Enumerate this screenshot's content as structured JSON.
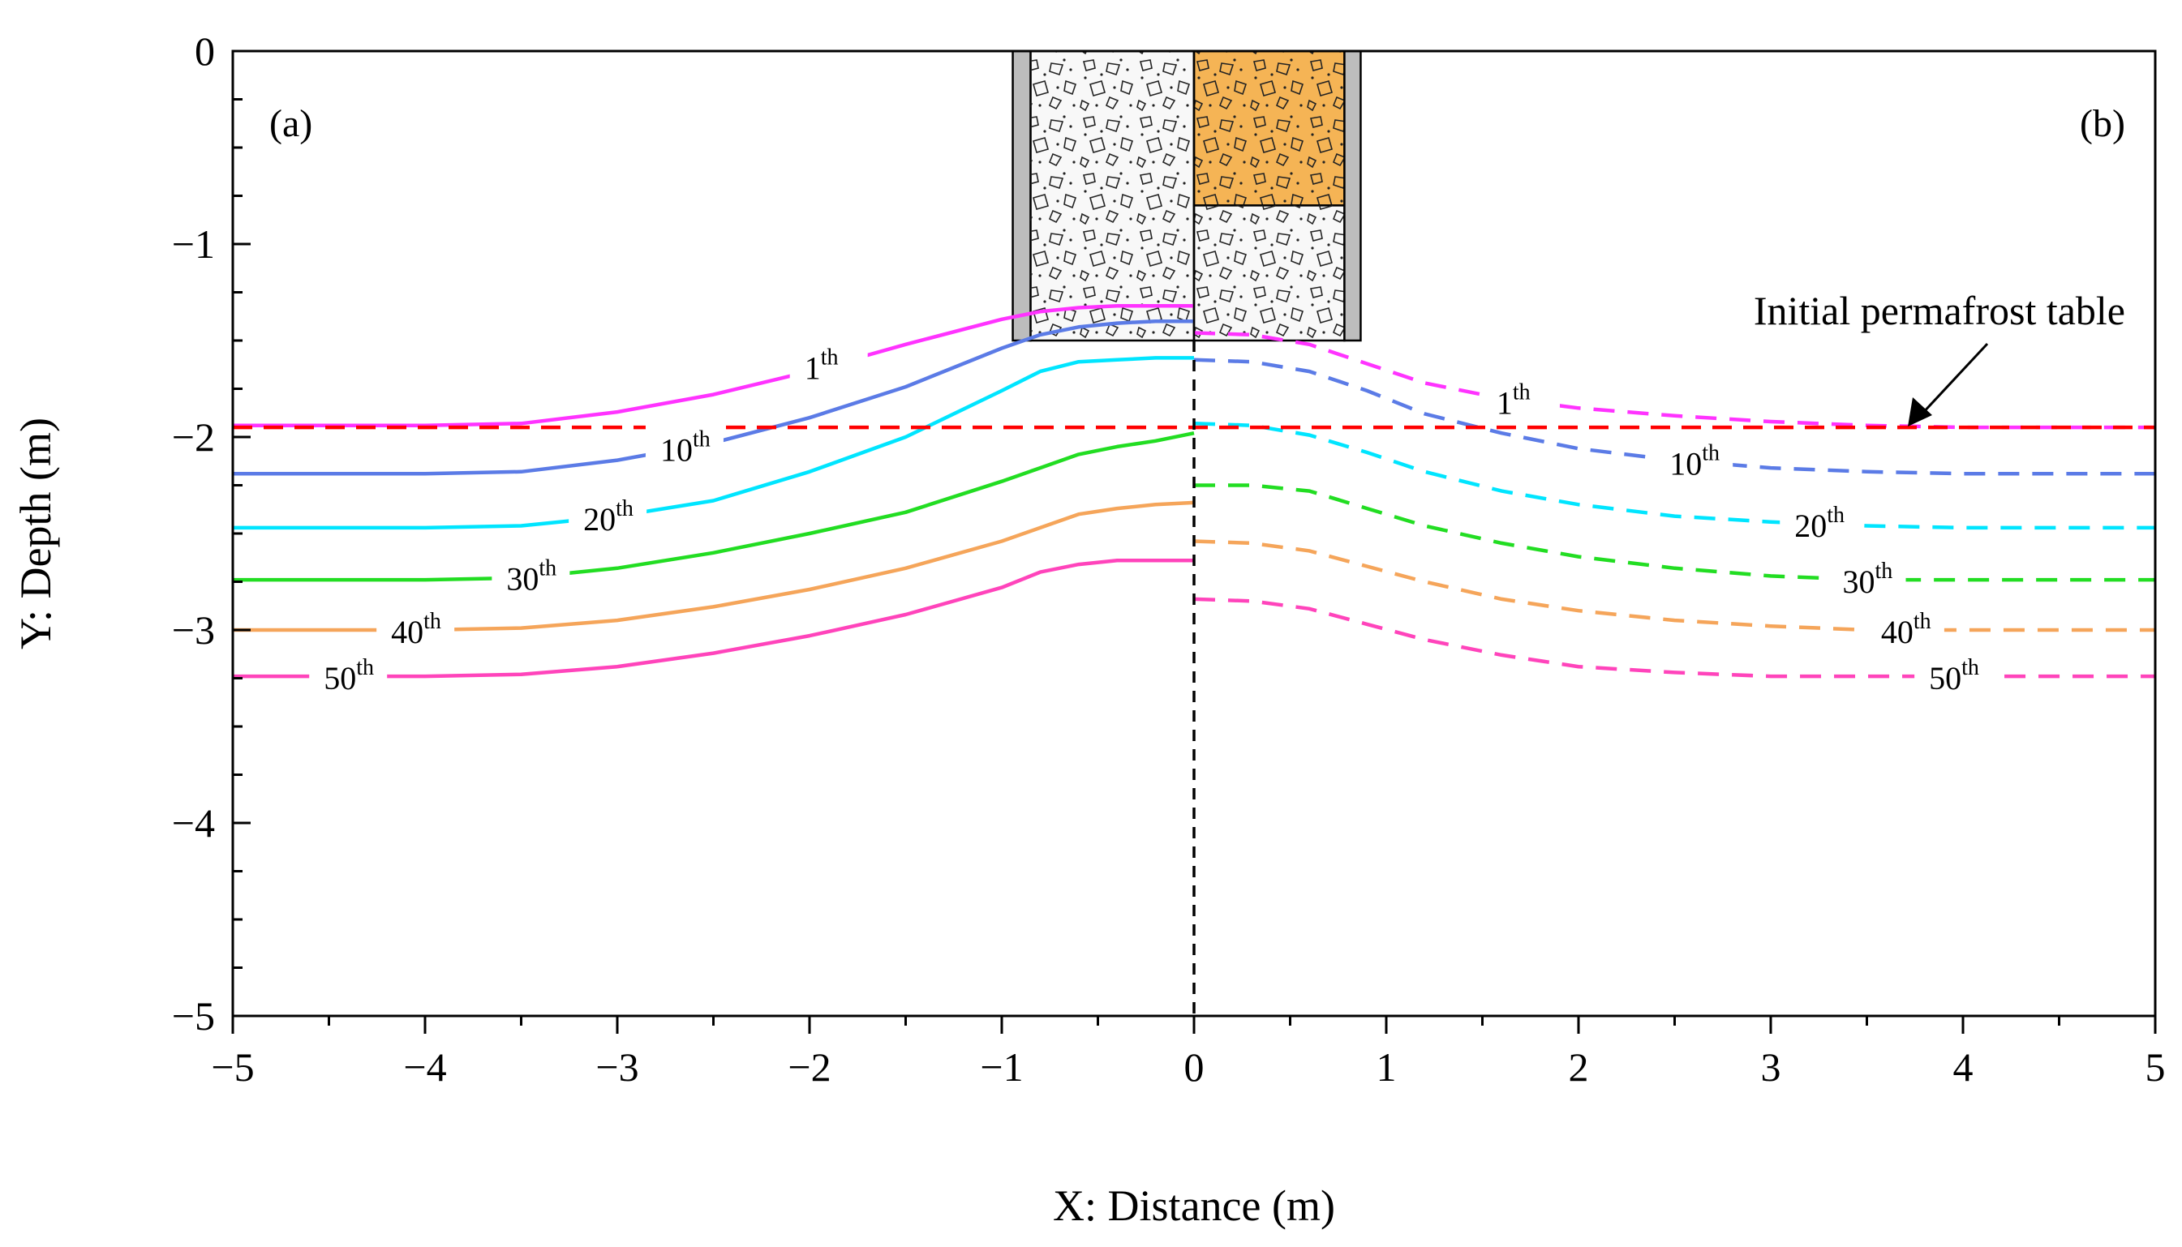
{
  "chart_data": {
    "type": "line",
    "title": "",
    "xlabel": "X: Distance (m)",
    "ylabel": "Y: Depth (m)",
    "xlim": [
      -5,
      5
    ],
    "ylim": [
      -5,
      0
    ],
    "xticks": [
      -5,
      -4,
      -3,
      -2,
      -1,
      0,
      1,
      2,
      3,
      4,
      5
    ],
    "yticks": [
      0,
      -1,
      -2,
      -3,
      -4,
      -5
    ],
    "xtick_labels": [
      "−5",
      "−4",
      "−3",
      "−2",
      "−1",
      "0",
      "1",
      "2",
      "3",
      "4",
      "5"
    ],
    "ytick_labels": [
      "0",
      "−1",
      "−2",
      "−3",
      "−4",
      "−5"
    ],
    "panel_labels": {
      "left": "(a)",
      "right": "(b)"
    },
    "annotation": {
      "text": "Initial permafrost table",
      "target": [
        3.7,
        -1.95
      ]
    },
    "permafrost_table": {
      "y": -1.95,
      "color": "#ff0000"
    },
    "center_line_x": 0,
    "structure": {
      "left_x": [
        -0.85,
        0
      ],
      "right_x": [
        0,
        0.85
      ],
      "depth": 1.5,
      "fill_depth_right": 0.8,
      "fill_color": "#f5b455"
    },
    "series": [
      {
        "name": "1th",
        "label_num": "1",
        "label_sup": "th",
        "color": "#ff33ff",
        "left": {
          "x": [
            -5,
            -4,
            -3.5,
            -3,
            -2.5,
            -2,
            -1.5,
            -1,
            -0.8,
            -0.6,
            -0.4,
            -0.2,
            0
          ],
          "y": [
            -1.94,
            -1.94,
            -1.93,
            -1.87,
            -1.78,
            -1.66,
            -1.52,
            -1.39,
            -1.35,
            -1.33,
            -1.32,
            -1.32,
            -1.32
          ]
        },
        "right": {
          "x": [
            0,
            0.3,
            0.6,
            0.9,
            1.2,
            1.6,
            2,
            2.5,
            3,
            3.5,
            4,
            5
          ],
          "y": [
            -1.46,
            -1.47,
            -1.52,
            -1.62,
            -1.72,
            -1.8,
            -1.85,
            -1.89,
            -1.92,
            -1.94,
            -1.95,
            -1.95
          ]
        },
        "label_left_x": -1.9,
        "label_right_x": 1.7
      },
      {
        "name": "10th",
        "label_num": "10",
        "label_sup": "th",
        "color": "#5b7be6",
        "left": {
          "x": [
            -5,
            -4,
            -3.5,
            -3,
            -2.5,
            -2,
            -1.5,
            -1,
            -0.8,
            -0.6,
            -0.4,
            -0.2,
            0
          ],
          "y": [
            -2.19,
            -2.19,
            -2.18,
            -2.12,
            -2.03,
            -1.9,
            -1.74,
            -1.54,
            -1.47,
            -1.43,
            -1.41,
            -1.4,
            -1.4
          ]
        },
        "right": {
          "x": [
            0,
            0.3,
            0.6,
            0.9,
            1.2,
            1.6,
            2,
            2.5,
            3,
            3.5,
            4,
            5
          ],
          "y": [
            -1.6,
            -1.61,
            -1.66,
            -1.76,
            -1.88,
            -1.98,
            -2.06,
            -2.12,
            -2.16,
            -2.18,
            -2.19,
            -2.19
          ]
        },
        "label_left_x": -2.65,
        "label_right_x": 2.6
      },
      {
        "name": "20th",
        "label_num": "20",
        "label_sup": "th",
        "color": "#00e5ff",
        "left": {
          "x": [
            -5,
            -4,
            -3.5,
            -3,
            -2.5,
            -2,
            -1.5,
            -1,
            -0.8,
            -0.6,
            -0.4,
            -0.2,
            0
          ],
          "y": [
            -2.47,
            -2.47,
            -2.46,
            -2.41,
            -2.33,
            -2.18,
            -2.0,
            -1.76,
            -1.66,
            -1.61,
            -1.6,
            -1.59,
            -1.59
          ]
        },
        "right": {
          "x": [
            0,
            0.3,
            0.6,
            0.9,
            1.2,
            1.6,
            2,
            2.5,
            3,
            3.5,
            4,
            5
          ],
          "y": [
            -1.93,
            -1.94,
            -1.99,
            -2.08,
            -2.18,
            -2.28,
            -2.35,
            -2.41,
            -2.44,
            -2.46,
            -2.47,
            -2.47
          ]
        },
        "label_left_x": -3.05,
        "label_right_x": 3.25
      },
      {
        "name": "30th",
        "label_num": "30",
        "label_sup": "th",
        "color": "#22dd22",
        "left": {
          "x": [
            -5,
            -4,
            -3.5,
            -3,
            -2.5,
            -2,
            -1.5,
            -1,
            -0.8,
            -0.6,
            -0.4,
            -0.2,
            0
          ],
          "y": [
            -2.74,
            -2.74,
            -2.73,
            -2.68,
            -2.6,
            -2.5,
            -2.39,
            -2.23,
            -2.16,
            -2.09,
            -2.05,
            -2.02,
            -1.98
          ]
        },
        "right": {
          "x": [
            0,
            0.3,
            0.6,
            0.9,
            1.2,
            1.6,
            2,
            2.5,
            3,
            3.5,
            4,
            5
          ],
          "y": [
            -2.25,
            -2.25,
            -2.28,
            -2.37,
            -2.46,
            -2.55,
            -2.62,
            -2.68,
            -2.72,
            -2.74,
            -2.74,
            -2.74
          ]
        },
        "label_left_x": -3.45,
        "label_right_x": 3.5
      },
      {
        "name": "40th",
        "label_num": "40",
        "label_sup": "th",
        "color": "#f5a55a",
        "left": {
          "x": [
            -5,
            -4,
            -3.5,
            -3,
            -2.5,
            -2,
            -1.5,
            -1,
            -0.8,
            -0.6,
            -0.4,
            -0.2,
            0
          ],
          "y": [
            -3.0,
            -3.0,
            -2.99,
            -2.95,
            -2.88,
            -2.79,
            -2.68,
            -2.54,
            -2.47,
            -2.4,
            -2.37,
            -2.35,
            -2.34
          ]
        },
        "right": {
          "x": [
            0,
            0.3,
            0.6,
            0.9,
            1.2,
            1.6,
            2,
            2.5,
            3,
            3.5,
            4,
            5
          ],
          "y": [
            -2.54,
            -2.55,
            -2.59,
            -2.67,
            -2.75,
            -2.84,
            -2.9,
            -2.95,
            -2.98,
            -3.0,
            -3.0,
            -3.0
          ]
        },
        "label_left_x": -4.05,
        "label_right_x": 3.7
      },
      {
        "name": "50th",
        "label_num": "50",
        "label_sup": "th",
        "color": "#ff44bb",
        "left": {
          "x": [
            -5,
            -4,
            -3.5,
            -3,
            -2.5,
            -2,
            -1.5,
            -1,
            -0.8,
            -0.6,
            -0.4,
            -0.2,
            0
          ],
          "y": [
            -3.24,
            -3.24,
            -3.23,
            -3.19,
            -3.12,
            -3.03,
            -2.92,
            -2.78,
            -2.7,
            -2.66,
            -2.64,
            -2.64,
            -2.64
          ]
        },
        "right": {
          "x": [
            0,
            0.3,
            0.6,
            0.9,
            1.2,
            1.6,
            2,
            2.5,
            3,
            3.5,
            4,
            5
          ],
          "y": [
            -2.84,
            -2.85,
            -2.89,
            -2.97,
            -3.05,
            -3.13,
            -3.19,
            -3.22,
            -3.24,
            -3.24,
            -3.24,
            -3.24
          ]
        },
        "label_left_x": -4.4,
        "label_right_x": 3.95
      }
    ]
  }
}
